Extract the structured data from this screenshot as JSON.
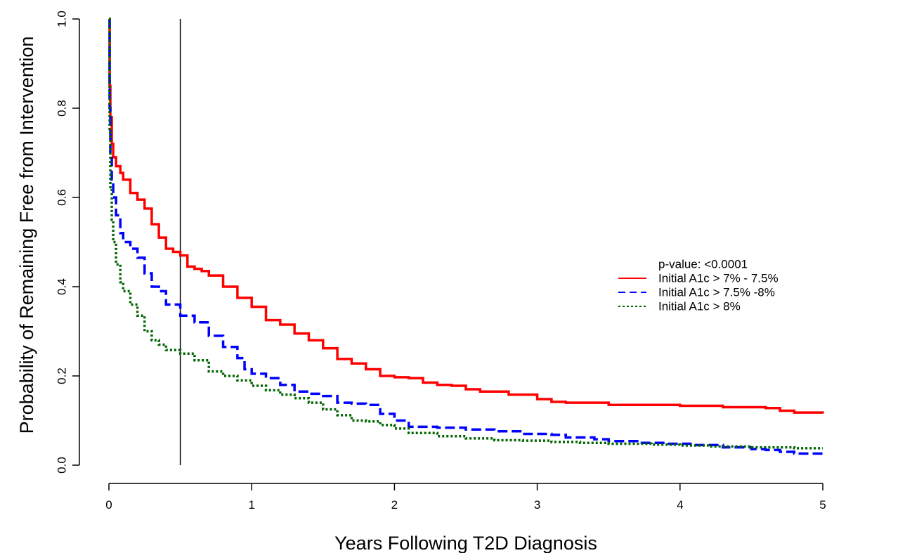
{
  "chart_data": {
    "type": "line",
    "xlabel": "Years Following T2D Diagnosis",
    "ylabel": "Probability of Remaining Free from Intervention",
    "xlim": [
      0,
      5
    ],
    "ylim": [
      0,
      1
    ],
    "x_ticks": [
      0,
      1,
      2,
      3,
      4,
      5
    ],
    "x_tick_labels": [
      "0",
      "1",
      "2",
      "3",
      "4",
      "5"
    ],
    "y_ticks": [
      0,
      0.2,
      0.4,
      0.6,
      0.8,
      1.0
    ],
    "y_tick_labels": [
      "0.0",
      "0.2",
      "0.4",
      "0.6",
      "0.8",
      "1.0"
    ],
    "grid": false,
    "legend_position": "right",
    "vertical_reference_line_x": 0.5,
    "annotation": "p-value: <0.0001",
    "series": [
      {
        "name": "Initial A1c > 7% - 7.5%",
        "color": "#ff0000",
        "dash": "solid",
        "points": [
          [
            0,
            1.0
          ],
          [
            0.005,
            0.85
          ],
          [
            0.01,
            0.78
          ],
          [
            0.02,
            0.72
          ],
          [
            0.03,
            0.69
          ],
          [
            0.05,
            0.67
          ],
          [
            0.08,
            0.655
          ],
          [
            0.1,
            0.64
          ],
          [
            0.15,
            0.61
          ],
          [
            0.2,
            0.595
          ],
          [
            0.25,
            0.575
          ],
          [
            0.3,
            0.54
          ],
          [
            0.35,
            0.51
          ],
          [
            0.4,
            0.485
          ],
          [
            0.45,
            0.478
          ],
          [
            0.5,
            0.47
          ],
          [
            0.55,
            0.445
          ],
          [
            0.6,
            0.44
          ],
          [
            0.65,
            0.435
          ],
          [
            0.7,
            0.425
          ],
          [
            0.8,
            0.4
          ],
          [
            0.9,
            0.375
          ],
          [
            1.0,
            0.355
          ],
          [
            1.1,
            0.325
          ],
          [
            1.2,
            0.315
          ],
          [
            1.3,
            0.295
          ],
          [
            1.4,
            0.28
          ],
          [
            1.5,
            0.262
          ],
          [
            1.6,
            0.238
          ],
          [
            1.7,
            0.228
          ],
          [
            1.8,
            0.215
          ],
          [
            1.9,
            0.2
          ],
          [
            2.0,
            0.197
          ],
          [
            2.1,
            0.195
          ],
          [
            2.2,
            0.185
          ],
          [
            2.3,
            0.18
          ],
          [
            2.4,
            0.178
          ],
          [
            2.5,
            0.17
          ],
          [
            2.6,
            0.165
          ],
          [
            2.8,
            0.158
          ],
          [
            3.0,
            0.148
          ],
          [
            3.1,
            0.142
          ],
          [
            3.2,
            0.14
          ],
          [
            3.5,
            0.135
          ],
          [
            4.0,
            0.133
          ],
          [
            4.3,
            0.13
          ],
          [
            4.6,
            0.128
          ],
          [
            4.7,
            0.122
          ],
          [
            4.8,
            0.118
          ],
          [
            5.0,
            0.116
          ]
        ]
      },
      {
        "name": "Initial A1c > 7.5% -8%",
        "color": "#0000ff",
        "dash": "dashed",
        "points": [
          [
            0,
            1.0
          ],
          [
            0.005,
            0.8
          ],
          [
            0.01,
            0.7
          ],
          [
            0.02,
            0.64
          ],
          [
            0.03,
            0.6
          ],
          [
            0.05,
            0.56
          ],
          [
            0.08,
            0.52
          ],
          [
            0.1,
            0.5
          ],
          [
            0.15,
            0.485
          ],
          [
            0.2,
            0.465
          ],
          [
            0.25,
            0.43
          ],
          [
            0.3,
            0.4
          ],
          [
            0.35,
            0.39
          ],
          [
            0.4,
            0.36
          ],
          [
            0.5,
            0.335
          ],
          [
            0.6,
            0.32
          ],
          [
            0.7,
            0.29
          ],
          [
            0.8,
            0.265
          ],
          [
            0.9,
            0.24
          ],
          [
            0.95,
            0.215
          ],
          [
            1.0,
            0.205
          ],
          [
            1.1,
            0.195
          ],
          [
            1.2,
            0.18
          ],
          [
            1.3,
            0.165
          ],
          [
            1.4,
            0.16
          ],
          [
            1.5,
            0.155
          ],
          [
            1.6,
            0.14
          ],
          [
            1.7,
            0.138
          ],
          [
            1.8,
            0.135
          ],
          [
            1.9,
            0.115
          ],
          [
            2.0,
            0.1
          ],
          [
            2.1,
            0.086
          ],
          [
            2.3,
            0.084
          ],
          [
            2.5,
            0.08
          ],
          [
            2.7,
            0.076
          ],
          [
            2.9,
            0.07
          ],
          [
            3.1,
            0.068
          ],
          [
            3.2,
            0.062
          ],
          [
            3.4,
            0.058
          ],
          [
            3.5,
            0.054
          ],
          [
            3.7,
            0.05
          ],
          [
            3.9,
            0.048
          ],
          [
            4.1,
            0.045
          ],
          [
            4.3,
            0.04
          ],
          [
            4.5,
            0.036
          ],
          [
            4.6,
            0.034
          ],
          [
            4.7,
            0.03
          ],
          [
            4.8,
            0.026
          ],
          [
            5.0,
            0.026
          ]
        ]
      },
      {
        "name": "Initial A1c > 8%",
        "color": "#006400",
        "dash": "dotted",
        "points": [
          [
            0,
            1.0
          ],
          [
            0.005,
            0.75
          ],
          [
            0.01,
            0.62
          ],
          [
            0.02,
            0.55
          ],
          [
            0.03,
            0.5
          ],
          [
            0.05,
            0.45
          ],
          [
            0.08,
            0.41
          ],
          [
            0.1,
            0.39
          ],
          [
            0.15,
            0.36
          ],
          [
            0.2,
            0.335
          ],
          [
            0.25,
            0.3
          ],
          [
            0.3,
            0.28
          ],
          [
            0.35,
            0.27
          ],
          [
            0.4,
            0.258
          ],
          [
            0.5,
            0.25
          ],
          [
            0.6,
            0.235
          ],
          [
            0.7,
            0.21
          ],
          [
            0.8,
            0.2
          ],
          [
            0.9,
            0.19
          ],
          [
            1.0,
            0.178
          ],
          [
            1.1,
            0.168
          ],
          [
            1.2,
            0.158
          ],
          [
            1.3,
            0.15
          ],
          [
            1.4,
            0.14
          ],
          [
            1.5,
            0.125
          ],
          [
            1.6,
            0.112
          ],
          [
            1.7,
            0.1
          ],
          [
            1.8,
            0.098
          ],
          [
            1.9,
            0.09
          ],
          [
            2.0,
            0.082
          ],
          [
            2.1,
            0.072
          ],
          [
            2.3,
            0.065
          ],
          [
            2.5,
            0.06
          ],
          [
            2.7,
            0.056
          ],
          [
            2.9,
            0.055
          ],
          [
            3.1,
            0.052
          ],
          [
            3.3,
            0.05
          ],
          [
            3.5,
            0.048
          ],
          [
            3.8,
            0.046
          ],
          [
            4.0,
            0.044
          ],
          [
            4.2,
            0.042
          ],
          [
            4.5,
            0.04
          ],
          [
            4.8,
            0.038
          ],
          [
            5.0,
            0.038
          ]
        ]
      }
    ]
  }
}
